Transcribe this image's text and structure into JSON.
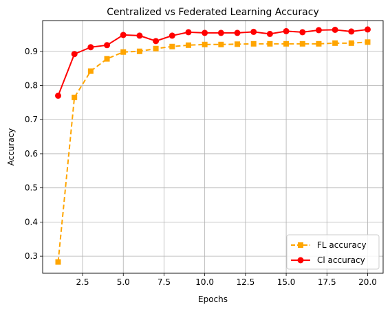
{
  "chart_data": {
    "type": "line",
    "title": "Centralized vs Federated Learning Accuracy",
    "xlabel": "Epochs",
    "ylabel": "Accuracy",
    "xlim": [
      0.05,
      20.95
    ],
    "ylim": [
      0.25,
      0.99
    ],
    "xticks": [
      2.5,
      5.0,
      7.5,
      10.0,
      12.5,
      15.0,
      17.5,
      20.0
    ],
    "xtick_labels": [
      "2.5",
      "5.0",
      "7.5",
      "10.0",
      "12.5",
      "15.0",
      "17.5",
      "20.0"
    ],
    "yticks": [
      0.3,
      0.4,
      0.5,
      0.6,
      0.7,
      0.8,
      0.9
    ],
    "ytick_labels": [
      "0.3",
      "0.4",
      "0.5",
      "0.6",
      "0.7",
      "0.8",
      "0.9"
    ],
    "grid": true,
    "legend_position": "lower-right",
    "x": [
      1,
      2,
      3,
      4,
      5,
      6,
      7,
      8,
      9,
      10,
      11,
      12,
      13,
      14,
      15,
      16,
      17,
      18,
      19,
      20
    ],
    "series": [
      {
        "name": "FL accuracy",
        "color": "#FFA500",
        "style": "dashed",
        "marker": "square",
        "values": [
          0.283,
          0.765,
          0.842,
          0.878,
          0.898,
          0.9,
          0.908,
          0.914,
          0.918,
          0.92,
          0.92,
          0.921,
          0.922,
          0.922,
          0.922,
          0.922,
          0.922,
          0.924,
          0.924,
          0.927
        ]
      },
      {
        "name": "Cl accuracy",
        "color": "#FF0000",
        "style": "solid",
        "marker": "circle",
        "values": [
          0.77,
          0.892,
          0.912,
          0.918,
          0.948,
          0.946,
          0.93,
          0.946,
          0.956,
          0.954,
          0.954,
          0.954,
          0.957,
          0.951,
          0.959,
          0.956,
          0.962,
          0.963,
          0.958,
          0.964
        ]
      }
    ]
  }
}
